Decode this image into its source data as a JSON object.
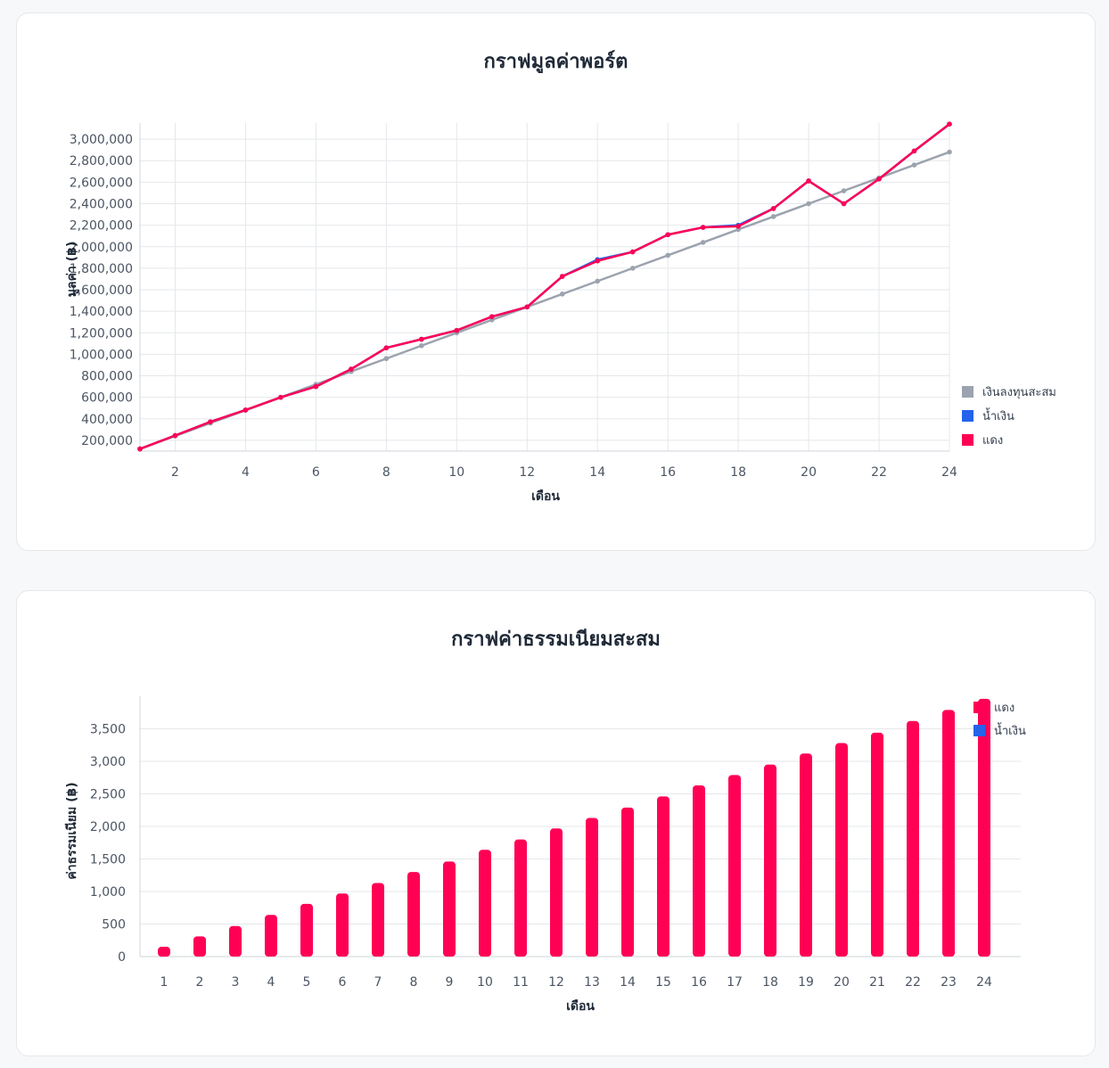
{
  "chart_data": [
    {
      "type": "line",
      "title": "กราฟมูลค่าพอร์ต",
      "xlabel": "เดือน",
      "ylabel": "มูลค่า (฿)",
      "x": [
        1,
        2,
        3,
        4,
        5,
        6,
        7,
        8,
        9,
        10,
        11,
        12,
        13,
        14,
        15,
        16,
        17,
        18,
        19,
        20,
        21,
        22,
        23,
        24
      ],
      "xticks": [
        2,
        4,
        6,
        8,
        10,
        12,
        14,
        16,
        18,
        20,
        22,
        24
      ],
      "xlim": [
        1,
        24
      ],
      "ylim": [
        100000,
        3150000
      ],
      "yticks": [
        200000,
        400000,
        600000,
        800000,
        1000000,
        1200000,
        1400000,
        1600000,
        1800000,
        2000000,
        2200000,
        2400000,
        2600000,
        2800000,
        3000000
      ],
      "ytick_labels": [
        "200,000",
        "400,000",
        "600,000",
        "800,000",
        "1,000,000",
        "1,200,000",
        "1,400,000",
        "1,600,000",
        "1,800,000",
        "2,000,000",
        "2,200,000",
        "2,400,000",
        "2,600,000",
        "2,800,000",
        "3,000,000"
      ],
      "grid": true,
      "legend_position": "right",
      "series": [
        {
          "name": "เงินลงทุนสะสม",
          "color": "#9ca3af",
          "values": [
            120000,
            240000,
            360000,
            480000,
            600000,
            720000,
            840000,
            960000,
            1080000,
            1200000,
            1320000,
            1440000,
            1560000,
            1680000,
            1800000,
            1920000,
            2040000,
            2160000,
            2280000,
            2400000,
            2520000,
            2640000,
            2760000,
            2880000
          ]
        },
        {
          "name": "น้ำเงิน",
          "color": "#2563eb",
          "values": [
            120000,
            245000,
            372000,
            482000,
            600000,
            700000,
            862000,
            1060000,
            1140000,
            1222000,
            1350000,
            1440000,
            1724000,
            1880000,
            1952000,
            2112000,
            2180000,
            2200000,
            2355000,
            2612000,
            2400000,
            2630000,
            2890000,
            3140000
          ]
        },
        {
          "name": "แดง",
          "color": "#ff0055",
          "values": [
            120000,
            245000,
            372000,
            482000,
            600000,
            700000,
            862000,
            1060000,
            1140000,
            1222000,
            1350000,
            1440000,
            1724000,
            1868000,
            1952000,
            2112000,
            2180000,
            2190000,
            2355000,
            2612000,
            2400000,
            2630000,
            2890000,
            3140000
          ]
        }
      ]
    },
    {
      "type": "bar",
      "title": "กราฟค่าธรรมเนียมสะสม",
      "xlabel": "เดือน",
      "ylabel": "ค่าธรรมเนียม (฿)",
      "categories": [
        "1",
        "2",
        "3",
        "4",
        "5",
        "6",
        "7",
        "8",
        "9",
        "10",
        "11",
        "12",
        "13",
        "14",
        "15",
        "16",
        "17",
        "18",
        "19",
        "20",
        "21",
        "22",
        "23",
        "24"
      ],
      "ylim": [
        0,
        4000
      ],
      "yticks": [
        0,
        500,
        1000,
        1500,
        2000,
        2500,
        3000,
        3500
      ],
      "ytick_labels": [
        "0",
        "500",
        "1,000",
        "1,500",
        "2,000",
        "2,500",
        "3,000",
        "3,500"
      ],
      "grid": true,
      "legend_position": "top-right",
      "series": [
        {
          "name": "แดง",
          "color": "#ff0055",
          "values": [
            150,
            310,
            470,
            640,
            810,
            970,
            1130,
            1300,
            1460,
            1640,
            1800,
            1970,
            2130,
            2290,
            2460,
            2630,
            2790,
            2950,
            3120,
            3280,
            3440,
            3620,
            3790,
            3960
          ]
        },
        {
          "name": "น้ำเงิน",
          "color": "#2563eb",
          "values": [
            0,
            0,
            0,
            0,
            0,
            0,
            0,
            0,
            0,
            0,
            0,
            0,
            0,
            0,
            0,
            0,
            0,
            0,
            0,
            0,
            0,
            0,
            0,
            0
          ]
        }
      ]
    }
  ]
}
